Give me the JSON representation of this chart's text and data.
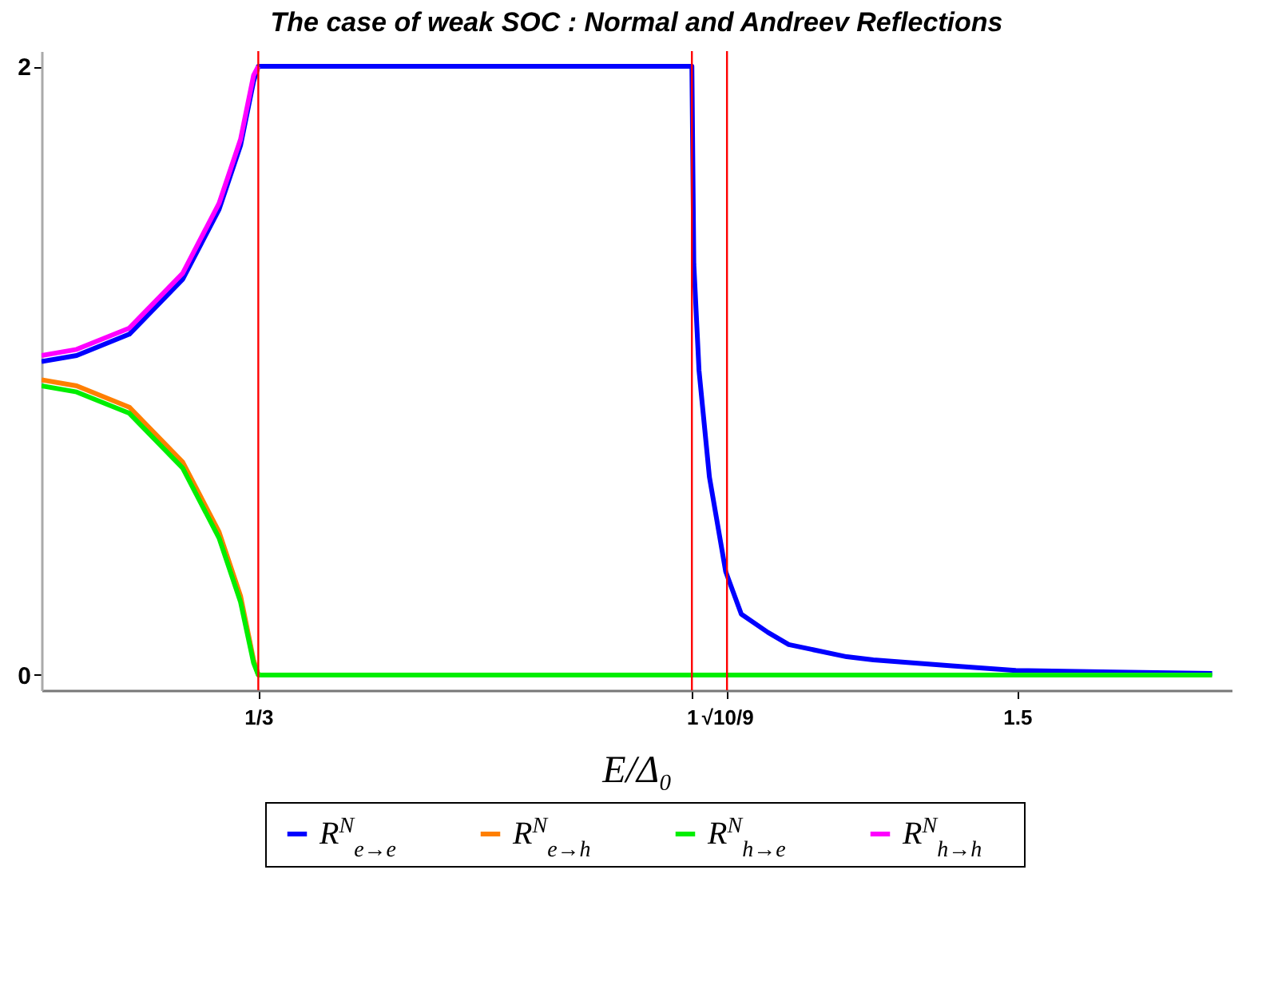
{
  "chart_data": {
    "type": "line",
    "title": "The case of weak SOC : Normal and Andreev Reflections",
    "xlabel": "E/Δ₀",
    "x": [
      0,
      0.054,
      0.135,
      0.217,
      0.273,
      0.306,
      0.326,
      0.3333,
      0.5,
      0.75,
      1.0,
      1.003,
      1.011,
      1.027,
      1.052,
      1.076,
      1.117,
      1.149,
      1.238,
      1.279,
      1.4,
      1.498,
      1.65,
      1.8
    ],
    "series": [
      {
        "name": "R$^{N}$$_{e→e}$",
        "color": "#0000ff",
        "values": [
          1.03,
          1.05,
          1.12,
          1.3,
          1.53,
          1.74,
          1.95,
          2,
          2,
          2,
          2,
          1.35,
          1.0,
          0.65,
          0.34,
          0.2,
          0.14,
          0.1,
          0.06,
          0.05,
          0.03,
          0.015,
          0.01,
          0.005
        ]
      },
      {
        "name": "R$^{N}$$_{e→h}$",
        "color": "#ff7f00",
        "values": [
          0.97,
          0.95,
          0.88,
          0.7,
          0.47,
          0.26,
          0.05,
          0,
          null,
          null,
          null,
          null,
          null,
          null,
          null,
          null,
          null,
          null,
          null,
          null,
          null,
          null,
          null,
          null
        ]
      },
      {
        "name": "R$^{N}$$_{h→e}$",
        "color": "#00ee00",
        "values": [
          0.95,
          0.93,
          0.86,
          0.68,
          0.45,
          0.24,
          0.04,
          0,
          0,
          0,
          0,
          0,
          0,
          0,
          0,
          0,
          0,
          0,
          0,
          0,
          0,
          0,
          0,
          0
        ]
      },
      {
        "name": "R$^{N}$$_{h→h}$",
        "color": "#ff00ff",
        "values": [
          1.05,
          1.07,
          1.14,
          1.32,
          1.55,
          1.76,
          1.97,
          2,
          null,
          null,
          null,
          null,
          null,
          null,
          null,
          null,
          null,
          null,
          null,
          null,
          null,
          null,
          null,
          null
        ]
      }
    ],
    "xlim": [
      0,
      1.83
    ],
    "ylim": [
      -0.05,
      2.05
    ],
    "xticks": [
      {
        "value": 0.3333,
        "label": "1/3"
      },
      1,
      {
        "value": 1.054,
        "label": "√10/9"
      },
      1.5
    ],
    "yticks": [
      0,
      2
    ],
    "ref_lines": [
      {
        "axis": "x",
        "value": 0.3333,
        "color": "#ff0000"
      },
      {
        "axis": "x",
        "value": 1,
        "color": "#ff0000"
      },
      {
        "axis": "x",
        "value": 1.054,
        "color": "#ff0000"
      }
    ],
    "legend": "bottom"
  }
}
